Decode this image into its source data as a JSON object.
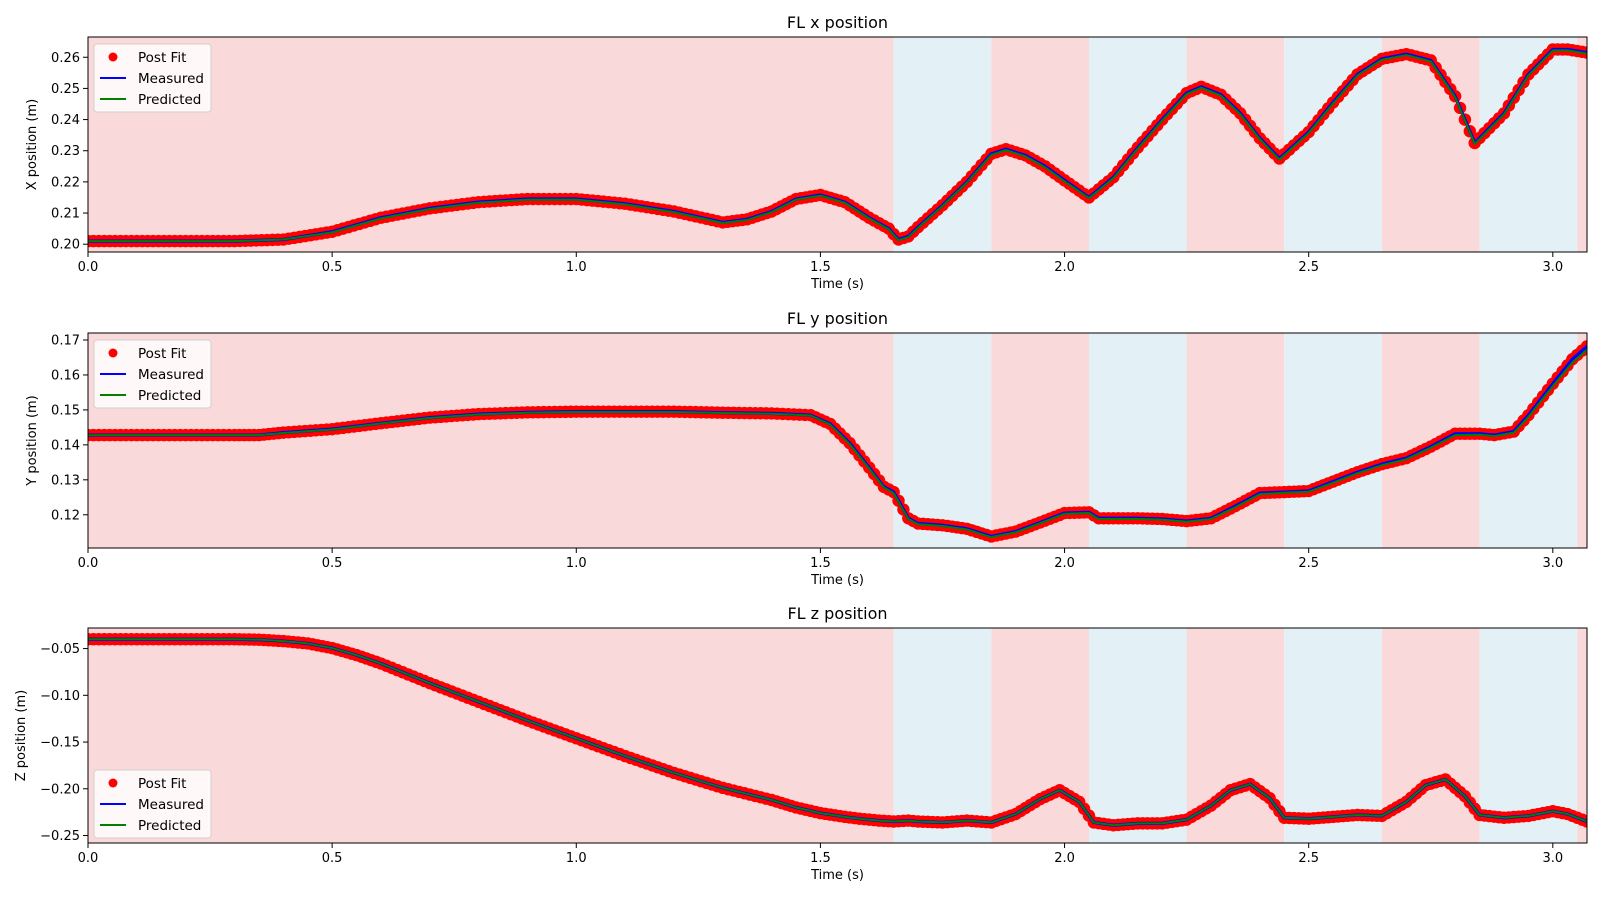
{
  "figure": {
    "legend_labels": [
      "Post Fit",
      "Measured",
      "Predicted"
    ]
  },
  "chart_data": [
    {
      "type": "line",
      "title": "FL x position",
      "xlabel": "Time (s)",
      "ylabel": "X position (m)",
      "xlim": [
        0,
        3.07
      ],
      "ylim": [
        0.1975,
        0.2665
      ],
      "xticks": [
        "0.0",
        "0.5",
        "1.0",
        "1.5",
        "2.0",
        "2.5",
        "3.0"
      ],
      "yticks": [
        "0.20",
        "0.21",
        "0.22",
        "0.23",
        "0.24",
        "0.25",
        "0.26"
      ],
      "legend_position": "upper left",
      "grid": false,
      "phases": [
        {
          "start": 0.0,
          "end": 1.65,
          "phase": "stance",
          "color": "#f9d9d9"
        },
        {
          "start": 1.65,
          "end": 1.85,
          "phase": "swing",
          "color": "#e3f1f6"
        },
        {
          "start": 1.85,
          "end": 2.05,
          "phase": "stance",
          "color": "#f9d9d9"
        },
        {
          "start": 2.05,
          "end": 2.25,
          "phase": "swing",
          "color": "#e3f1f6"
        },
        {
          "start": 2.25,
          "end": 2.45,
          "phase": "stance",
          "color": "#f9d9d9"
        },
        {
          "start": 2.45,
          "end": 2.65,
          "phase": "swing",
          "color": "#e3f1f6"
        },
        {
          "start": 2.65,
          "end": 2.85,
          "phase": "stance",
          "color": "#f9d9d9"
        },
        {
          "start": 2.85,
          "end": 3.05,
          "phase": "swing",
          "color": "#e3f1f6"
        },
        {
          "start": 3.05,
          "end": 3.07,
          "phase": "stance",
          "color": "#f9d9d9"
        }
      ],
      "x": [
        0.0,
        0.1,
        0.2,
        0.3,
        0.4,
        0.5,
        0.6,
        0.7,
        0.8,
        0.9,
        1.0,
        1.1,
        1.2,
        1.3,
        1.35,
        1.4,
        1.45,
        1.5,
        1.55,
        1.6,
        1.64,
        1.66,
        1.68,
        1.7,
        1.75,
        1.8,
        1.85,
        1.88,
        1.92,
        1.96,
        2.0,
        2.05,
        2.1,
        2.15,
        2.2,
        2.25,
        2.28,
        2.32,
        2.36,
        2.4,
        2.44,
        2.5,
        2.55,
        2.6,
        2.65,
        2.7,
        2.75,
        2.8,
        2.84,
        2.9,
        2.95,
        3.0,
        3.03,
        3.07
      ],
      "series": [
        {
          "name": "Post Fit",
          "style": "points",
          "color": "#ff0000",
          "values": [
            0.201,
            0.201,
            0.201,
            0.201,
            0.2015,
            0.204,
            0.2085,
            0.2115,
            0.2135,
            0.2145,
            0.2145,
            0.213,
            0.2105,
            0.207,
            0.208,
            0.2105,
            0.2145,
            0.2158,
            0.2135,
            0.2085,
            0.205,
            0.2015,
            0.2025,
            0.2055,
            0.2125,
            0.22,
            0.229,
            0.2305,
            0.2285,
            0.225,
            0.2205,
            0.215,
            0.2215,
            0.231,
            0.24,
            0.2485,
            0.2505,
            0.248,
            0.242,
            0.234,
            0.2275,
            0.236,
            0.2455,
            0.2545,
            0.2595,
            0.261,
            0.259,
            0.2475,
            0.2325,
            0.242,
            0.2545,
            0.2625,
            0.2625,
            0.2615
          ]
        },
        {
          "name": "Measured",
          "style": "line",
          "color": "#0000ff",
          "values": [
            0.201,
            0.201,
            0.201,
            0.201,
            0.2015,
            0.204,
            0.2085,
            0.2115,
            0.2135,
            0.2145,
            0.2145,
            0.213,
            0.2105,
            0.207,
            0.208,
            0.2105,
            0.2145,
            0.2158,
            0.2135,
            0.2085,
            0.205,
            0.2015,
            0.2025,
            0.2055,
            0.2125,
            0.22,
            0.229,
            0.2305,
            0.2285,
            0.225,
            0.2205,
            0.215,
            0.2215,
            0.231,
            0.24,
            0.2485,
            0.2505,
            0.248,
            0.242,
            0.234,
            0.2275,
            0.236,
            0.2455,
            0.2545,
            0.2595,
            0.261,
            0.259,
            0.2475,
            0.2325,
            0.242,
            0.2545,
            0.2625,
            0.2625,
            0.2615
          ]
        },
        {
          "name": "Predicted",
          "style": "line",
          "color": "#008000",
          "values": [
            0.201,
            0.201,
            0.201,
            0.201,
            0.2015,
            0.2038,
            0.2083,
            0.2113,
            0.2133,
            0.2143,
            0.2143,
            0.2128,
            0.2103,
            0.2068,
            0.2078,
            0.2103,
            0.2143,
            0.2156,
            0.2133,
            0.2083,
            0.2048,
            0.2013,
            0.2023,
            0.2053,
            0.2123,
            0.2198,
            0.2287,
            0.2302,
            0.2282,
            0.2247,
            0.2202,
            0.2148,
            0.2212,
            0.2307,
            0.2397,
            0.2482,
            0.2502,
            0.2477,
            0.2417,
            0.2337,
            0.2272,
            0.2357,
            0.2452,
            0.2542,
            0.2592,
            0.2607,
            0.2587,
            0.2472,
            0.2322,
            0.2417,
            0.2542,
            0.2622,
            0.2622,
            0.2612
          ]
        }
      ]
    },
    {
      "type": "line",
      "title": "FL y position",
      "xlabel": "Time (s)",
      "ylabel": "Y position (m)",
      "xlim": [
        0,
        3.07
      ],
      "ylim": [
        0.1105,
        0.172
      ],
      "xticks": [
        "0.0",
        "0.5",
        "1.0",
        "1.5",
        "2.0",
        "2.5",
        "3.0"
      ],
      "yticks": [
        "0.12",
        "0.13",
        "0.14",
        "0.15",
        "0.16",
        "0.17"
      ],
      "legend_position": "upper left",
      "grid": false,
      "phases": [
        {
          "start": 0.0,
          "end": 1.65,
          "phase": "stance",
          "color": "#f9d9d9"
        },
        {
          "start": 1.65,
          "end": 1.85,
          "phase": "swing",
          "color": "#e3f1f6"
        },
        {
          "start": 1.85,
          "end": 2.05,
          "phase": "stance",
          "color": "#f9d9d9"
        },
        {
          "start": 2.05,
          "end": 2.25,
          "phase": "swing",
          "color": "#e3f1f6"
        },
        {
          "start": 2.25,
          "end": 2.45,
          "phase": "stance",
          "color": "#f9d9d9"
        },
        {
          "start": 2.45,
          "end": 2.65,
          "phase": "swing",
          "color": "#e3f1f6"
        },
        {
          "start": 2.65,
          "end": 2.85,
          "phase": "stance",
          "color": "#f9d9d9"
        },
        {
          "start": 2.85,
          "end": 3.05,
          "phase": "swing",
          "color": "#e3f1f6"
        },
        {
          "start": 3.05,
          "end": 3.07,
          "phase": "stance",
          "color": "#f9d9d9"
        }
      ],
      "x": [
        0.0,
        0.1,
        0.2,
        0.3,
        0.35,
        0.4,
        0.5,
        0.6,
        0.7,
        0.8,
        0.9,
        1.0,
        1.1,
        1.2,
        1.3,
        1.4,
        1.48,
        1.52,
        1.56,
        1.6,
        1.63,
        1.65,
        1.68,
        1.7,
        1.75,
        1.8,
        1.85,
        1.9,
        1.95,
        2.0,
        2.05,
        2.07,
        2.1,
        2.15,
        2.2,
        2.25,
        2.3,
        2.35,
        2.4,
        2.45,
        2.5,
        2.55,
        2.6,
        2.65,
        2.7,
        2.75,
        2.8,
        2.85,
        2.88,
        2.92,
        2.95,
        3.0,
        3.04,
        3.07
      ],
      "series": [
        {
          "name": "Post Fit",
          "style": "points",
          "color": "#ff0000",
          "values": [
            0.1428,
            0.1428,
            0.1428,
            0.1428,
            0.1428,
            0.1435,
            0.1445,
            0.1462,
            0.1478,
            0.1488,
            0.1493,
            0.1495,
            0.1495,
            0.1495,
            0.1492,
            0.149,
            0.1485,
            0.146,
            0.1405,
            0.1335,
            0.128,
            0.1265,
            0.119,
            0.1175,
            0.117,
            0.116,
            0.1138,
            0.1152,
            0.1178,
            0.1205,
            0.1207,
            0.119,
            0.119,
            0.119,
            0.1188,
            0.1182,
            0.119,
            0.1225,
            0.1262,
            0.1265,
            0.1268,
            0.1295,
            0.1322,
            0.1345,
            0.1362,
            0.1395,
            0.1432,
            0.1432,
            0.1428,
            0.1438,
            0.1485,
            0.1575,
            0.1645,
            0.1682
          ]
        },
        {
          "name": "Measured",
          "style": "line",
          "color": "#0000ff",
          "values": [
            0.1428,
            0.1428,
            0.1428,
            0.1428,
            0.1428,
            0.1435,
            0.1445,
            0.1462,
            0.1478,
            0.1488,
            0.1493,
            0.1495,
            0.1495,
            0.1495,
            0.1492,
            0.149,
            0.1485,
            0.146,
            0.1405,
            0.1335,
            0.128,
            0.1265,
            0.119,
            0.1175,
            0.117,
            0.116,
            0.1138,
            0.1152,
            0.1178,
            0.1205,
            0.1207,
            0.119,
            0.119,
            0.119,
            0.1188,
            0.1182,
            0.119,
            0.1225,
            0.1262,
            0.1265,
            0.1268,
            0.1295,
            0.1322,
            0.1345,
            0.1362,
            0.1395,
            0.1432,
            0.1432,
            0.1428,
            0.1438,
            0.1485,
            0.1575,
            0.1645,
            0.1682
          ]
        },
        {
          "name": "Predicted",
          "style": "line",
          "color": "#008000",
          "values": [
            0.1428,
            0.1428,
            0.1428,
            0.1428,
            0.1428,
            0.1434,
            0.1444,
            0.1461,
            0.1477,
            0.1487,
            0.1492,
            0.1494,
            0.1494,
            0.1494,
            0.1491,
            0.1489,
            0.1484,
            0.1458,
            0.1402,
            0.1332,
            0.1278,
            0.1262,
            0.1188,
            0.1173,
            0.1168,
            0.1158,
            0.1136,
            0.115,
            0.1176,
            0.1203,
            0.1205,
            0.1188,
            0.1188,
            0.1188,
            0.1186,
            0.118,
            0.1188,
            0.1222,
            0.1259,
            0.1263,
            0.1266,
            0.1292,
            0.1319,
            0.1342,
            0.1359,
            0.1392,
            0.1428,
            0.1429,
            0.1425,
            0.1435,
            0.148,
            0.1568,
            0.1636,
            0.1672
          ]
        }
      ]
    },
    {
      "type": "line",
      "title": "FL z position",
      "xlabel": "Time (s)",
      "ylabel": "Z position (m)",
      "xlim": [
        0,
        3.07
      ],
      "ylim": [
        -0.258,
        -0.028
      ],
      "xticks": [
        "0.0",
        "0.5",
        "1.0",
        "1.5",
        "2.0",
        "2.5",
        "3.0"
      ],
      "yticks": [
        "−0.05",
        "−0.10",
        "−0.15",
        "−0.20",
        "−0.25"
      ],
      "legend_position": "lower left",
      "grid": false,
      "phases": [
        {
          "start": 0.0,
          "end": 1.65,
          "phase": "stance",
          "color": "#f9d9d9"
        },
        {
          "start": 1.65,
          "end": 1.85,
          "phase": "swing",
          "color": "#e3f1f6"
        },
        {
          "start": 1.85,
          "end": 2.05,
          "phase": "stance",
          "color": "#f9d9d9"
        },
        {
          "start": 2.05,
          "end": 2.25,
          "phase": "swing",
          "color": "#e3f1f6"
        },
        {
          "start": 2.25,
          "end": 2.45,
          "phase": "stance",
          "color": "#f9d9d9"
        },
        {
          "start": 2.45,
          "end": 2.65,
          "phase": "swing",
          "color": "#e3f1f6"
        },
        {
          "start": 2.65,
          "end": 2.85,
          "phase": "stance",
          "color": "#f9d9d9"
        },
        {
          "start": 2.85,
          "end": 3.05,
          "phase": "swing",
          "color": "#e3f1f6"
        },
        {
          "start": 3.05,
          "end": 3.07,
          "phase": "stance",
          "color": "#f9d9d9"
        }
      ],
      "x": [
        0.0,
        0.1,
        0.2,
        0.3,
        0.35,
        0.4,
        0.45,
        0.5,
        0.55,
        0.6,
        0.7,
        0.8,
        0.9,
        1.0,
        1.1,
        1.2,
        1.3,
        1.4,
        1.45,
        1.5,
        1.55,
        1.58,
        1.62,
        1.65,
        1.68,
        1.7,
        1.75,
        1.8,
        1.85,
        1.9,
        1.95,
        1.99,
        2.03,
        2.06,
        2.1,
        2.15,
        2.2,
        2.25,
        2.3,
        2.34,
        2.38,
        2.42,
        2.45,
        2.5,
        2.55,
        2.6,
        2.65,
        2.7,
        2.74,
        2.78,
        2.82,
        2.85,
        2.9,
        2.95,
        3.0,
        3.03,
        3.07
      ],
      "series": [
        {
          "name": "Post Fit",
          "style": "points",
          "color": "#ff0000",
          "values": [
            -0.04,
            -0.04,
            -0.04,
            -0.04,
            -0.0405,
            -0.042,
            -0.0445,
            -0.0495,
            -0.057,
            -0.066,
            -0.087,
            -0.107,
            -0.127,
            -0.146,
            -0.165,
            -0.183,
            -0.199,
            -0.212,
            -0.22,
            -0.226,
            -0.23,
            -0.232,
            -0.234,
            -0.235,
            -0.234,
            -0.235,
            -0.236,
            -0.234,
            -0.236,
            -0.227,
            -0.211,
            -0.2015,
            -0.214,
            -0.236,
            -0.239,
            -0.237,
            -0.237,
            -0.233,
            -0.218,
            -0.2015,
            -0.195,
            -0.21,
            -0.231,
            -0.232,
            -0.23,
            -0.228,
            -0.229,
            -0.214,
            -0.196,
            -0.19,
            -0.208,
            -0.228,
            -0.231,
            -0.229,
            -0.224,
            -0.227,
            -0.235
          ]
        },
        {
          "name": "Measured",
          "style": "line",
          "color": "#0000ff",
          "values": [
            -0.04,
            -0.04,
            -0.04,
            -0.04,
            -0.0405,
            -0.042,
            -0.0445,
            -0.0495,
            -0.057,
            -0.066,
            -0.087,
            -0.107,
            -0.127,
            -0.146,
            -0.165,
            -0.183,
            -0.199,
            -0.212,
            -0.22,
            -0.226,
            -0.23,
            -0.232,
            -0.234,
            -0.235,
            -0.234,
            -0.235,
            -0.236,
            -0.234,
            -0.236,
            -0.227,
            -0.211,
            -0.2015,
            -0.214,
            -0.236,
            -0.239,
            -0.237,
            -0.237,
            -0.233,
            -0.218,
            -0.2015,
            -0.195,
            -0.21,
            -0.231,
            -0.232,
            -0.23,
            -0.228,
            -0.229,
            -0.214,
            -0.196,
            -0.19,
            -0.208,
            -0.228,
            -0.231,
            -0.229,
            -0.224,
            -0.227,
            -0.235
          ]
        },
        {
          "name": "Predicted",
          "style": "line",
          "color": "#008000",
          "values": [
            -0.04,
            -0.04,
            -0.04,
            -0.04,
            -0.0405,
            -0.042,
            -0.0445,
            -0.0495,
            -0.057,
            -0.066,
            -0.087,
            -0.107,
            -0.127,
            -0.146,
            -0.165,
            -0.183,
            -0.199,
            -0.212,
            -0.22,
            -0.226,
            -0.23,
            -0.232,
            -0.234,
            -0.235,
            -0.234,
            -0.235,
            -0.236,
            -0.234,
            -0.236,
            -0.227,
            -0.211,
            -0.2015,
            -0.214,
            -0.236,
            -0.239,
            -0.237,
            -0.237,
            -0.233,
            -0.218,
            -0.2015,
            -0.195,
            -0.21,
            -0.231,
            -0.232,
            -0.23,
            -0.228,
            -0.229,
            -0.214,
            -0.196,
            -0.19,
            -0.208,
            -0.228,
            -0.231,
            -0.229,
            -0.224,
            -0.227,
            -0.235
          ]
        }
      ]
    }
  ]
}
